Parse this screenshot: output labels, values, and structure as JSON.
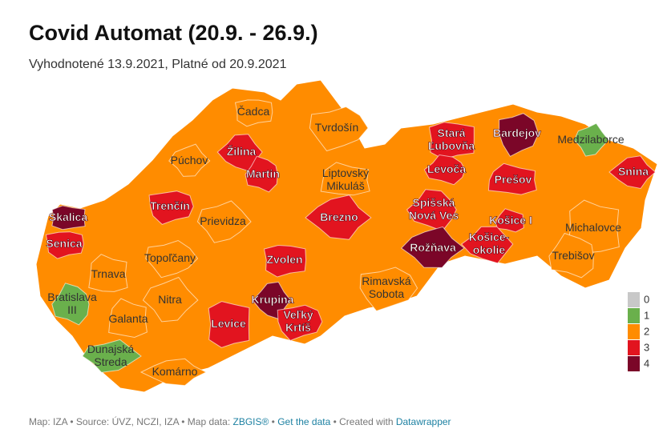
{
  "title": "Covid Automat (20.9. - 26.9.)",
  "subtitle": "Vyhodnotené 13.9.2021, Platné od 20.9.2021",
  "districts": [
    {
      "lines": [
        "Čadca"
      ],
      "level": 2
    },
    {
      "lines": [
        "Tvrdošín"
      ],
      "level": 2
    },
    {
      "lines": [
        "Púchov"
      ],
      "level": 2
    },
    {
      "lines": [
        "Žilina"
      ],
      "level": 3
    },
    {
      "lines": [
        "Martin"
      ],
      "level": 3
    },
    {
      "lines": [
        "Liptovský",
        "Mikuláš"
      ],
      "level": 2
    },
    {
      "lines": [
        "Stará",
        "Ľubovňa"
      ],
      "level": 3
    },
    {
      "lines": [
        "Bardejov"
      ],
      "level": 4
    },
    {
      "lines": [
        "Medzilaborce"
      ],
      "level": 1
    },
    {
      "lines": [
        "Snina"
      ],
      "level": 3
    },
    {
      "lines": [
        "Levoča"
      ],
      "level": 3
    },
    {
      "lines": [
        "Prešov"
      ],
      "level": 3
    },
    {
      "lines": [
        "Skalica"
      ],
      "level": 4
    },
    {
      "lines": [
        "Trenčín"
      ],
      "level": 3
    },
    {
      "lines": [
        "Prievidza"
      ],
      "level": 2
    },
    {
      "lines": [
        "Brezno"
      ],
      "level": 3
    },
    {
      "lines": [
        "Spišská",
        "Nová Ves"
      ],
      "level": 3
    },
    {
      "lines": [
        "Košice I"
      ],
      "level": 3
    },
    {
      "lines": [
        "Michalovce"
      ],
      "level": 2
    },
    {
      "lines": [
        "Senica"
      ],
      "level": 3
    },
    {
      "lines": [
        "Topoľčany"
      ],
      "level": 2
    },
    {
      "lines": [
        "Rožňava"
      ],
      "level": 4
    },
    {
      "lines": [
        "Košice-",
        "okolie"
      ],
      "level": 3
    },
    {
      "lines": [
        "Trebišov"
      ],
      "level": 2
    },
    {
      "lines": [
        "Trnava"
      ],
      "level": 2
    },
    {
      "lines": [
        "Zvolen"
      ],
      "level": 3
    },
    {
      "lines": [
        "Rimavská",
        "Sobota"
      ],
      "level": 2
    },
    {
      "lines": [
        "Nitra"
      ],
      "level": 2
    },
    {
      "lines": [
        "Krupina"
      ],
      "level": 4
    },
    {
      "lines": [
        "Bratislava",
        "III"
      ],
      "level": 1
    },
    {
      "lines": [
        "Galanta"
      ],
      "level": 2
    },
    {
      "lines": [
        "Levice"
      ],
      "level": 3
    },
    {
      "lines": [
        "Veľký",
        "Krtíš"
      ],
      "level": 3
    },
    {
      "lines": [
        "Dunajská",
        "Streda"
      ],
      "level": 1
    },
    {
      "lines": [
        "Komárno"
      ],
      "level": 2
    }
  ],
  "legend": [
    {
      "level": 0,
      "color": "#c8c8c8"
    },
    {
      "level": 1,
      "color": "#6ab04c"
    },
    {
      "level": 2,
      "color": "#ff8c00"
    },
    {
      "level": 3,
      "color": "#e2141f"
    },
    {
      "level": 4,
      "color": "#7b0628"
    }
  ],
  "footer": {
    "text1": "Map: IZA • Source: ÚVZ, NCZI, IZA • Map data: ",
    "link1": "ZBGIS®",
    "sep1": " • ",
    "link2": "Get the data",
    "text2": " • Created with ",
    "link3": "Datawrapper"
  }
}
